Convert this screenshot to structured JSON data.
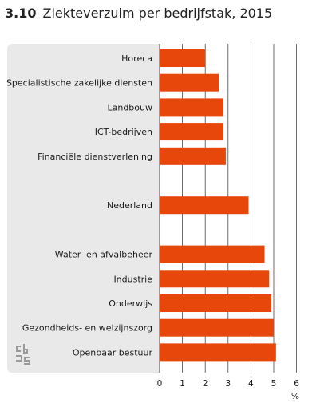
{
  "header": {
    "number": "3.10",
    "title": "Ziekteverzuim per bedrijfstak, 2015"
  },
  "logo": {
    "icon": "cbs-logo-icon"
  },
  "colors": {
    "bar": "#e8470c",
    "panel": "#e9e9e9",
    "grid": "#4a4a4a"
  },
  "chart_data": {
    "type": "bar",
    "orientation": "horizontal",
    "title": "Ziekteverzuim per bedrijfstak, 2015",
    "xlabel": "%",
    "xlim": [
      0,
      6
    ],
    "xticks": [
      0,
      1,
      2,
      3,
      4,
      5,
      6
    ],
    "grid": true,
    "categories": [
      "Horeca",
      "Specialistische zakelijke diensten",
      "Landbouw",
      "ICT-bedrijven",
      "Financiële dienstverlening",
      "",
      "Nederland",
      "",
      "Water- en afvalbeheer",
      "Industrie",
      "Onderwijs",
      "Gezondheids- en welzijnszorg",
      "Openbaar bestuur"
    ],
    "values": [
      2.0,
      2.6,
      2.8,
      2.8,
      2.9,
      null,
      3.9,
      null,
      4.6,
      4.8,
      4.9,
      5.0,
      5.1
    ]
  }
}
